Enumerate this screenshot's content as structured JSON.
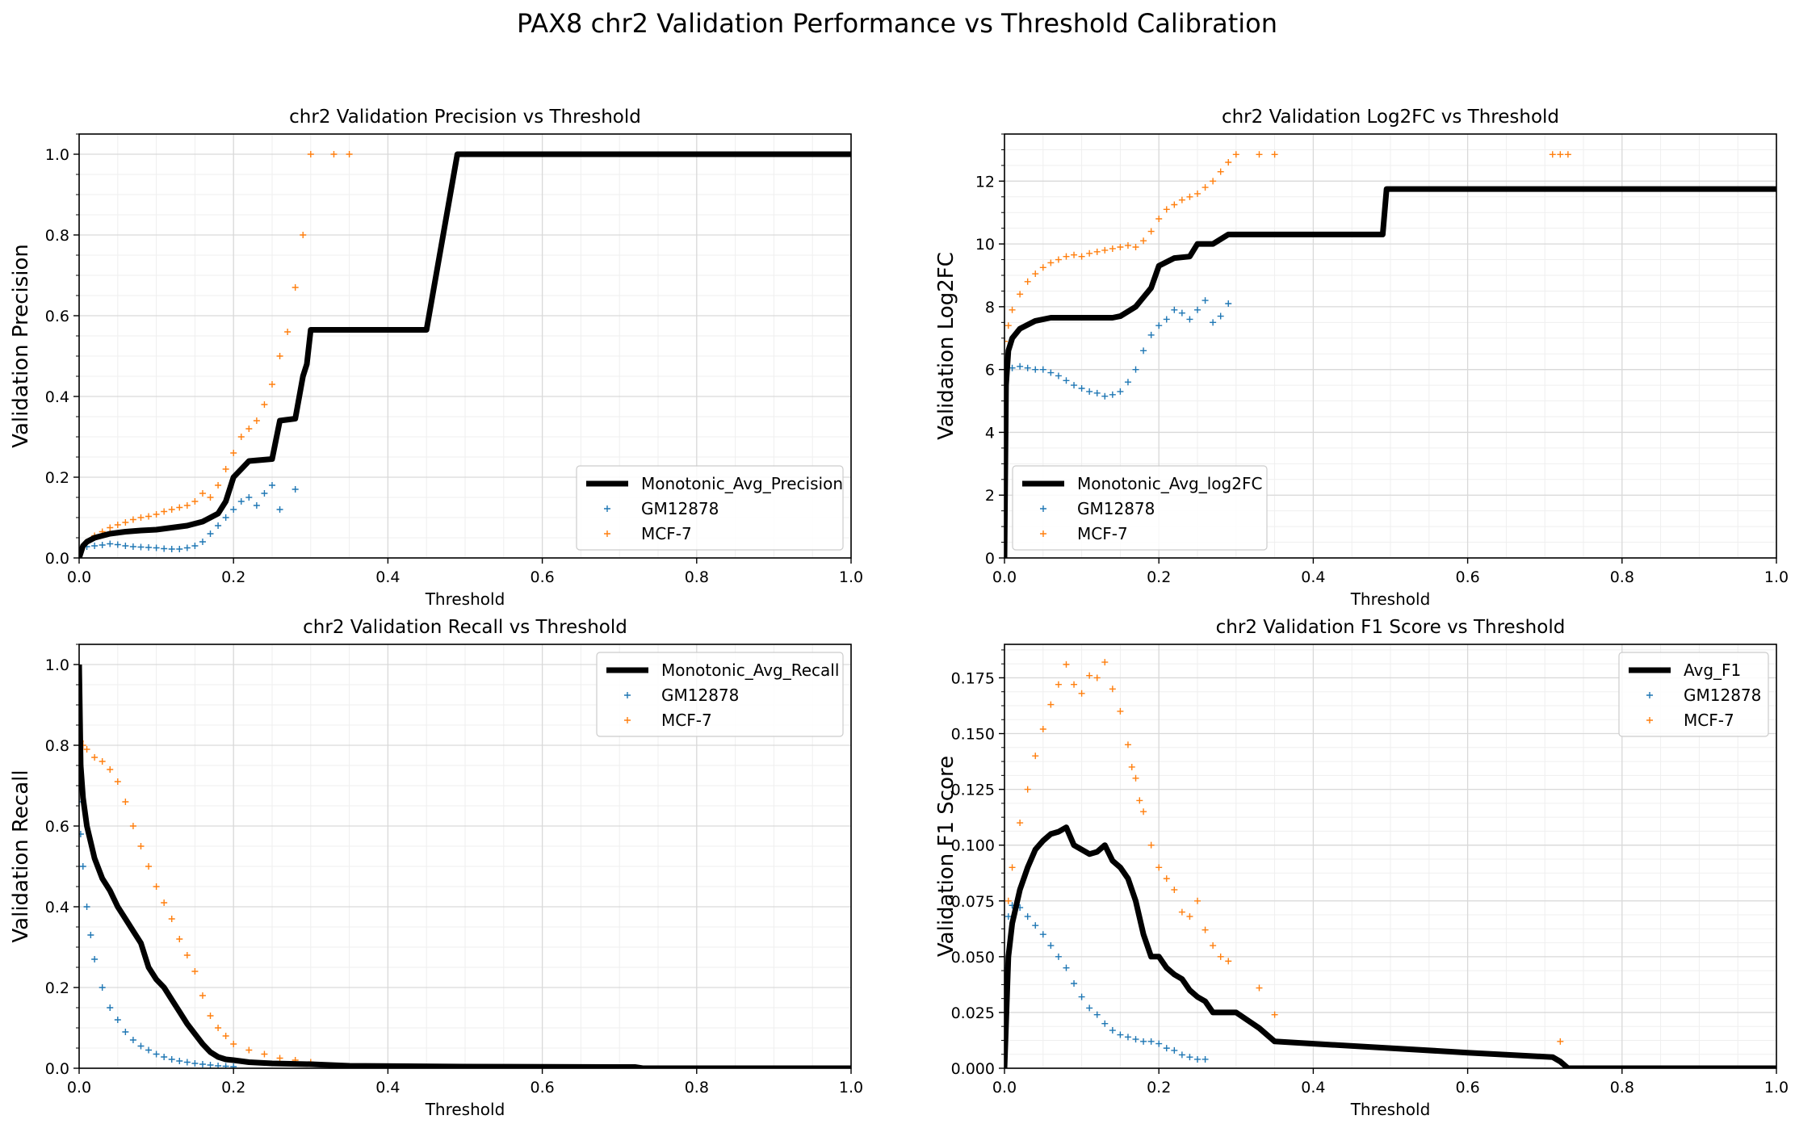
{
  "figure": {
    "suptitle": "PAX8 chr2 Validation Performance vs Threshold Calibration"
  },
  "colors": {
    "avg": "#000000",
    "GM12878": "#1f77b4",
    "MCF-7": "#ff7f0e",
    "grid": "#d9d9d9",
    "minorgrid": "#efefef"
  },
  "chart_data": [
    {
      "type": "line",
      "title": "chr2 Validation Precision vs Threshold",
      "xlabel": "Threshold",
      "ylabel": "Validation Precision",
      "xlim": [
        0,
        1
      ],
      "ylim": [
        0,
        1.05
      ],
      "xticks": [
        0.0,
        0.2,
        0.4,
        0.6,
        0.8,
        1.0
      ],
      "yticks": [
        0.0,
        0.2,
        0.4,
        0.6,
        0.8,
        1.0
      ],
      "tick_decimals": 1,
      "grid": true,
      "legend_position": "lower-right",
      "series": [
        {
          "name": "Monotonic_Avg_Precision",
          "kind": "line",
          "color": "#000000",
          "x": [
            0.0,
            0.005,
            0.01,
            0.02,
            0.04,
            0.06,
            0.08,
            0.1,
            0.12,
            0.14,
            0.16,
            0.18,
            0.19,
            0.2,
            0.21,
            0.22,
            0.25,
            0.26,
            0.28,
            0.29,
            0.295,
            0.3,
            0.45,
            0.49,
            0.5,
            1.0
          ],
          "y": [
            0.0,
            0.03,
            0.04,
            0.05,
            0.06,
            0.065,
            0.068,
            0.07,
            0.075,
            0.08,
            0.09,
            0.11,
            0.14,
            0.2,
            0.22,
            0.24,
            0.245,
            0.34,
            0.345,
            0.45,
            0.48,
            0.565,
            0.565,
            1.0,
            1.0,
            1.0
          ]
        },
        {
          "name": "GM12878",
          "kind": "scatter",
          "color": "#1f77b4",
          "x": [
            0.0,
            0.01,
            0.02,
            0.03,
            0.04,
            0.05,
            0.06,
            0.07,
            0.08,
            0.09,
            0.1,
            0.11,
            0.12,
            0.13,
            0.14,
            0.15,
            0.16,
            0.17,
            0.18,
            0.19,
            0.2,
            0.21,
            0.22,
            0.23,
            0.24,
            0.25,
            0.26,
            0.28
          ],
          "y": [
            0.02,
            0.028,
            0.03,
            0.032,
            0.035,
            0.033,
            0.03,
            0.028,
            0.027,
            0.026,
            0.025,
            0.023,
            0.022,
            0.022,
            0.025,
            0.03,
            0.04,
            0.06,
            0.08,
            0.1,
            0.12,
            0.14,
            0.15,
            0.13,
            0.16,
            0.18,
            0.12,
            0.17
          ]
        },
        {
          "name": "MCF-7",
          "kind": "scatter",
          "color": "#ff7f0e",
          "x": [
            0.0,
            0.01,
            0.02,
            0.03,
            0.04,
            0.05,
            0.06,
            0.07,
            0.08,
            0.09,
            0.1,
            0.11,
            0.12,
            0.13,
            0.14,
            0.15,
            0.16,
            0.17,
            0.18,
            0.19,
            0.2,
            0.21,
            0.22,
            0.23,
            0.24,
            0.25,
            0.26,
            0.27,
            0.28,
            0.29,
            0.3,
            0.33,
            0.35
          ],
          "y": [
            0.01,
            0.04,
            0.055,
            0.065,
            0.075,
            0.082,
            0.088,
            0.095,
            0.1,
            0.103,
            0.108,
            0.115,
            0.12,
            0.125,
            0.13,
            0.14,
            0.16,
            0.15,
            0.18,
            0.22,
            0.26,
            0.3,
            0.32,
            0.34,
            0.38,
            0.43,
            0.5,
            0.56,
            0.67,
            0.8,
            1.0,
            1.0,
            1.0
          ]
        }
      ]
    },
    {
      "type": "line",
      "title": "chr2 Validation Log2FC vs Threshold",
      "xlabel": "Threshold",
      "ylabel": "Validation Log2FC",
      "xlim": [
        0,
        1
      ],
      "ylim": [
        0,
        13.5
      ],
      "xticks": [
        0.0,
        0.2,
        0.4,
        0.6,
        0.8,
        1.0
      ],
      "yticks": [
        0,
        2,
        4,
        6,
        8,
        10,
        12
      ],
      "tick_decimals": 0,
      "grid": true,
      "legend_position": "lower-left",
      "series": [
        {
          "name": "Monotonic_Avg_log2FC",
          "kind": "line",
          "color": "#000000",
          "x": [
            0.0,
            0.002,
            0.005,
            0.01,
            0.02,
            0.04,
            0.06,
            0.1,
            0.14,
            0.15,
            0.17,
            0.18,
            0.19,
            0.2,
            0.22,
            0.24,
            0.25,
            0.27,
            0.29,
            0.3,
            0.49,
            0.495,
            0.5,
            1.0
          ],
          "y": [
            0.0,
            5.5,
            6.6,
            7.0,
            7.3,
            7.55,
            7.65,
            7.65,
            7.65,
            7.7,
            8.0,
            8.3,
            8.6,
            9.3,
            9.55,
            9.6,
            10.0,
            10.0,
            10.3,
            10.3,
            10.3,
            11.75,
            11.75,
            11.75
          ]
        },
        {
          "name": "GM12878",
          "kind": "scatter",
          "color": "#1f77b4",
          "x": [
            0.0,
            0.01,
            0.02,
            0.03,
            0.04,
            0.05,
            0.06,
            0.07,
            0.08,
            0.09,
            0.1,
            0.11,
            0.12,
            0.13,
            0.14,
            0.15,
            0.16,
            0.17,
            0.18,
            0.19,
            0.2,
            0.21,
            0.22,
            0.23,
            0.24,
            0.25,
            0.26,
            0.27,
            0.28,
            0.29
          ],
          "y": [
            6.0,
            6.05,
            6.1,
            6.05,
            6.0,
            6.0,
            5.9,
            5.8,
            5.65,
            5.5,
            5.4,
            5.3,
            5.25,
            5.15,
            5.2,
            5.3,
            5.6,
            6.0,
            6.6,
            7.1,
            7.4,
            7.6,
            7.9,
            7.8,
            7.6,
            7.9,
            8.2,
            7.5,
            7.7,
            8.1
          ]
        },
        {
          "name": "MCF-7",
          "kind": "scatter",
          "color": "#ff7f0e",
          "x": [
            0.0,
            0.005,
            0.01,
            0.02,
            0.03,
            0.04,
            0.05,
            0.06,
            0.07,
            0.08,
            0.09,
            0.1,
            0.11,
            0.12,
            0.13,
            0.14,
            0.15,
            0.16,
            0.17,
            0.18,
            0.19,
            0.2,
            0.21,
            0.22,
            0.23,
            0.24,
            0.25,
            0.26,
            0.27,
            0.28,
            0.29,
            0.3,
            0.33,
            0.35,
            0.71,
            0.72,
            0.73
          ],
          "y": [
            6.9,
            7.4,
            7.9,
            8.4,
            8.8,
            9.05,
            9.25,
            9.4,
            9.5,
            9.6,
            9.65,
            9.6,
            9.7,
            9.75,
            9.8,
            9.85,
            9.9,
            9.95,
            9.9,
            10.1,
            10.4,
            10.8,
            11.1,
            11.25,
            11.4,
            11.5,
            11.6,
            11.8,
            12.0,
            12.3,
            12.6,
            12.85,
            12.85,
            12.85,
            12.85,
            12.85,
            12.85
          ]
        }
      ]
    },
    {
      "type": "line",
      "title": "chr2 Validation Recall vs Threshold",
      "xlabel": "Threshold",
      "ylabel": "Validation Recall",
      "xlim": [
        0,
        1
      ],
      "ylim": [
        0,
        1.05
      ],
      "xticks": [
        0.0,
        0.2,
        0.4,
        0.6,
        0.8,
        1.0
      ],
      "yticks": [
        0.0,
        0.2,
        0.4,
        0.6,
        0.8,
        1.0
      ],
      "tick_decimals": 1,
      "grid": true,
      "legend_position": "upper-right",
      "series": [
        {
          "name": "Monotonic_Avg_Recall",
          "kind": "line",
          "color": "#000000",
          "x": [
            0.0,
            0.002,
            0.005,
            0.01,
            0.02,
            0.03,
            0.04,
            0.05,
            0.06,
            0.07,
            0.08,
            0.09,
            0.1,
            0.11,
            0.12,
            0.13,
            0.14,
            0.15,
            0.16,
            0.17,
            0.18,
            0.19,
            0.2,
            0.22,
            0.25,
            0.3,
            0.35,
            0.5,
            0.72,
            0.73,
            1.0
          ],
          "y": [
            1.0,
            0.75,
            0.67,
            0.6,
            0.52,
            0.47,
            0.44,
            0.4,
            0.37,
            0.34,
            0.31,
            0.25,
            0.22,
            0.2,
            0.17,
            0.14,
            0.11,
            0.085,
            0.06,
            0.04,
            0.028,
            0.022,
            0.02,
            0.015,
            0.012,
            0.01,
            0.006,
            0.004,
            0.003,
            0.0,
            0.0
          ]
        },
        {
          "name": "GM12878",
          "kind": "scatter",
          "color": "#1f77b4",
          "x": [
            0.0,
            0.002,
            0.005,
            0.01,
            0.015,
            0.02,
            0.03,
            0.04,
            0.05,
            0.06,
            0.07,
            0.08,
            0.09,
            0.1,
            0.11,
            0.12,
            0.13,
            0.14,
            0.15,
            0.16,
            0.17,
            0.18,
            0.19,
            0.2
          ],
          "y": [
            0.66,
            0.58,
            0.5,
            0.4,
            0.33,
            0.27,
            0.2,
            0.15,
            0.12,
            0.09,
            0.07,
            0.055,
            0.045,
            0.035,
            0.028,
            0.022,
            0.018,
            0.015,
            0.012,
            0.01,
            0.008,
            0.006,
            0.005,
            0.004
          ]
        },
        {
          "name": "MCF-7",
          "kind": "scatter",
          "color": "#ff7f0e",
          "x": [
            0.0,
            0.002,
            0.005,
            0.01,
            0.02,
            0.03,
            0.04,
            0.05,
            0.06,
            0.07,
            0.08,
            0.09,
            0.1,
            0.11,
            0.12,
            0.13,
            0.14,
            0.15,
            0.16,
            0.17,
            0.18,
            0.19,
            0.2,
            0.22,
            0.24,
            0.26,
            0.28,
            0.3
          ],
          "y": [
            0.84,
            0.81,
            0.8,
            0.79,
            0.77,
            0.76,
            0.74,
            0.71,
            0.66,
            0.6,
            0.55,
            0.5,
            0.45,
            0.41,
            0.37,
            0.32,
            0.28,
            0.24,
            0.18,
            0.13,
            0.1,
            0.08,
            0.06,
            0.045,
            0.035,
            0.025,
            0.02,
            0.015
          ]
        }
      ]
    },
    {
      "type": "line",
      "title": "chr2 Validation F1 Score vs Threshold",
      "xlabel": "Threshold",
      "ylabel": "Validation F1 Score",
      "xlim": [
        0,
        1
      ],
      "ylim": [
        0,
        0.19
      ],
      "xticks": [
        0.0,
        0.2,
        0.4,
        0.6,
        0.8,
        1.0
      ],
      "yticks": [
        0.0,
        0.025,
        0.05,
        0.075,
        0.1,
        0.125,
        0.15,
        0.175
      ],
      "tick_decimals": 3,
      "grid": true,
      "legend_position": "upper-right",
      "series": [
        {
          "name": "Avg_F1",
          "kind": "line",
          "color": "#000000",
          "x": [
            0.0,
            0.005,
            0.01,
            0.02,
            0.03,
            0.04,
            0.05,
            0.06,
            0.07,
            0.08,
            0.09,
            0.1,
            0.11,
            0.12,
            0.13,
            0.14,
            0.15,
            0.16,
            0.17,
            0.18,
            0.19,
            0.2,
            0.21,
            0.22,
            0.23,
            0.24,
            0.25,
            0.26,
            0.27,
            0.3,
            0.33,
            0.35,
            0.4,
            0.5,
            0.6,
            0.71,
            0.72,
            0.73,
            1.0
          ],
          "y": [
            0.0,
            0.05,
            0.065,
            0.08,
            0.09,
            0.098,
            0.102,
            0.105,
            0.106,
            0.108,
            0.1,
            0.098,
            0.096,
            0.097,
            0.1,
            0.093,
            0.09,
            0.085,
            0.075,
            0.06,
            0.05,
            0.05,
            0.045,
            0.042,
            0.04,
            0.035,
            0.032,
            0.03,
            0.025,
            0.025,
            0.018,
            0.012,
            0.011,
            0.009,
            0.007,
            0.005,
            0.003,
            0.0,
            0.0
          ]
        },
        {
          "name": "GM12878",
          "kind": "scatter",
          "color": "#1f77b4",
          "x": [
            0.0,
            0.005,
            0.01,
            0.02,
            0.03,
            0.04,
            0.05,
            0.06,
            0.07,
            0.08,
            0.09,
            0.1,
            0.11,
            0.12,
            0.13,
            0.14,
            0.15,
            0.16,
            0.17,
            0.18,
            0.19,
            0.2,
            0.21,
            0.22,
            0.23,
            0.24,
            0.25,
            0.26
          ],
          "y": [
            0.045,
            0.068,
            0.073,
            0.072,
            0.068,
            0.064,
            0.06,
            0.055,
            0.05,
            0.045,
            0.038,
            0.032,
            0.027,
            0.024,
            0.02,
            0.017,
            0.015,
            0.014,
            0.013,
            0.012,
            0.012,
            0.011,
            0.009,
            0.008,
            0.006,
            0.005,
            0.004,
            0.004
          ]
        },
        {
          "name": "MCF-7",
          "kind": "scatter",
          "color": "#ff7f0e",
          "x": [
            0.0,
            0.005,
            0.01,
            0.02,
            0.03,
            0.04,
            0.05,
            0.06,
            0.07,
            0.08,
            0.09,
            0.1,
            0.11,
            0.12,
            0.13,
            0.14,
            0.15,
            0.16,
            0.165,
            0.17,
            0.175,
            0.18,
            0.19,
            0.2,
            0.21,
            0.22,
            0.23,
            0.24,
            0.25,
            0.26,
            0.27,
            0.28,
            0.29,
            0.33,
            0.35,
            0.72
          ],
          "y": [
            0.03,
            0.075,
            0.09,
            0.11,
            0.125,
            0.14,
            0.152,
            0.163,
            0.172,
            0.181,
            0.172,
            0.168,
            0.176,
            0.175,
            0.182,
            0.17,
            0.16,
            0.145,
            0.135,
            0.13,
            0.12,
            0.115,
            0.1,
            0.09,
            0.085,
            0.08,
            0.07,
            0.068,
            0.075,
            0.062,
            0.055,
            0.05,
            0.048,
            0.036,
            0.024,
            0.012
          ]
        }
      ]
    }
  ]
}
